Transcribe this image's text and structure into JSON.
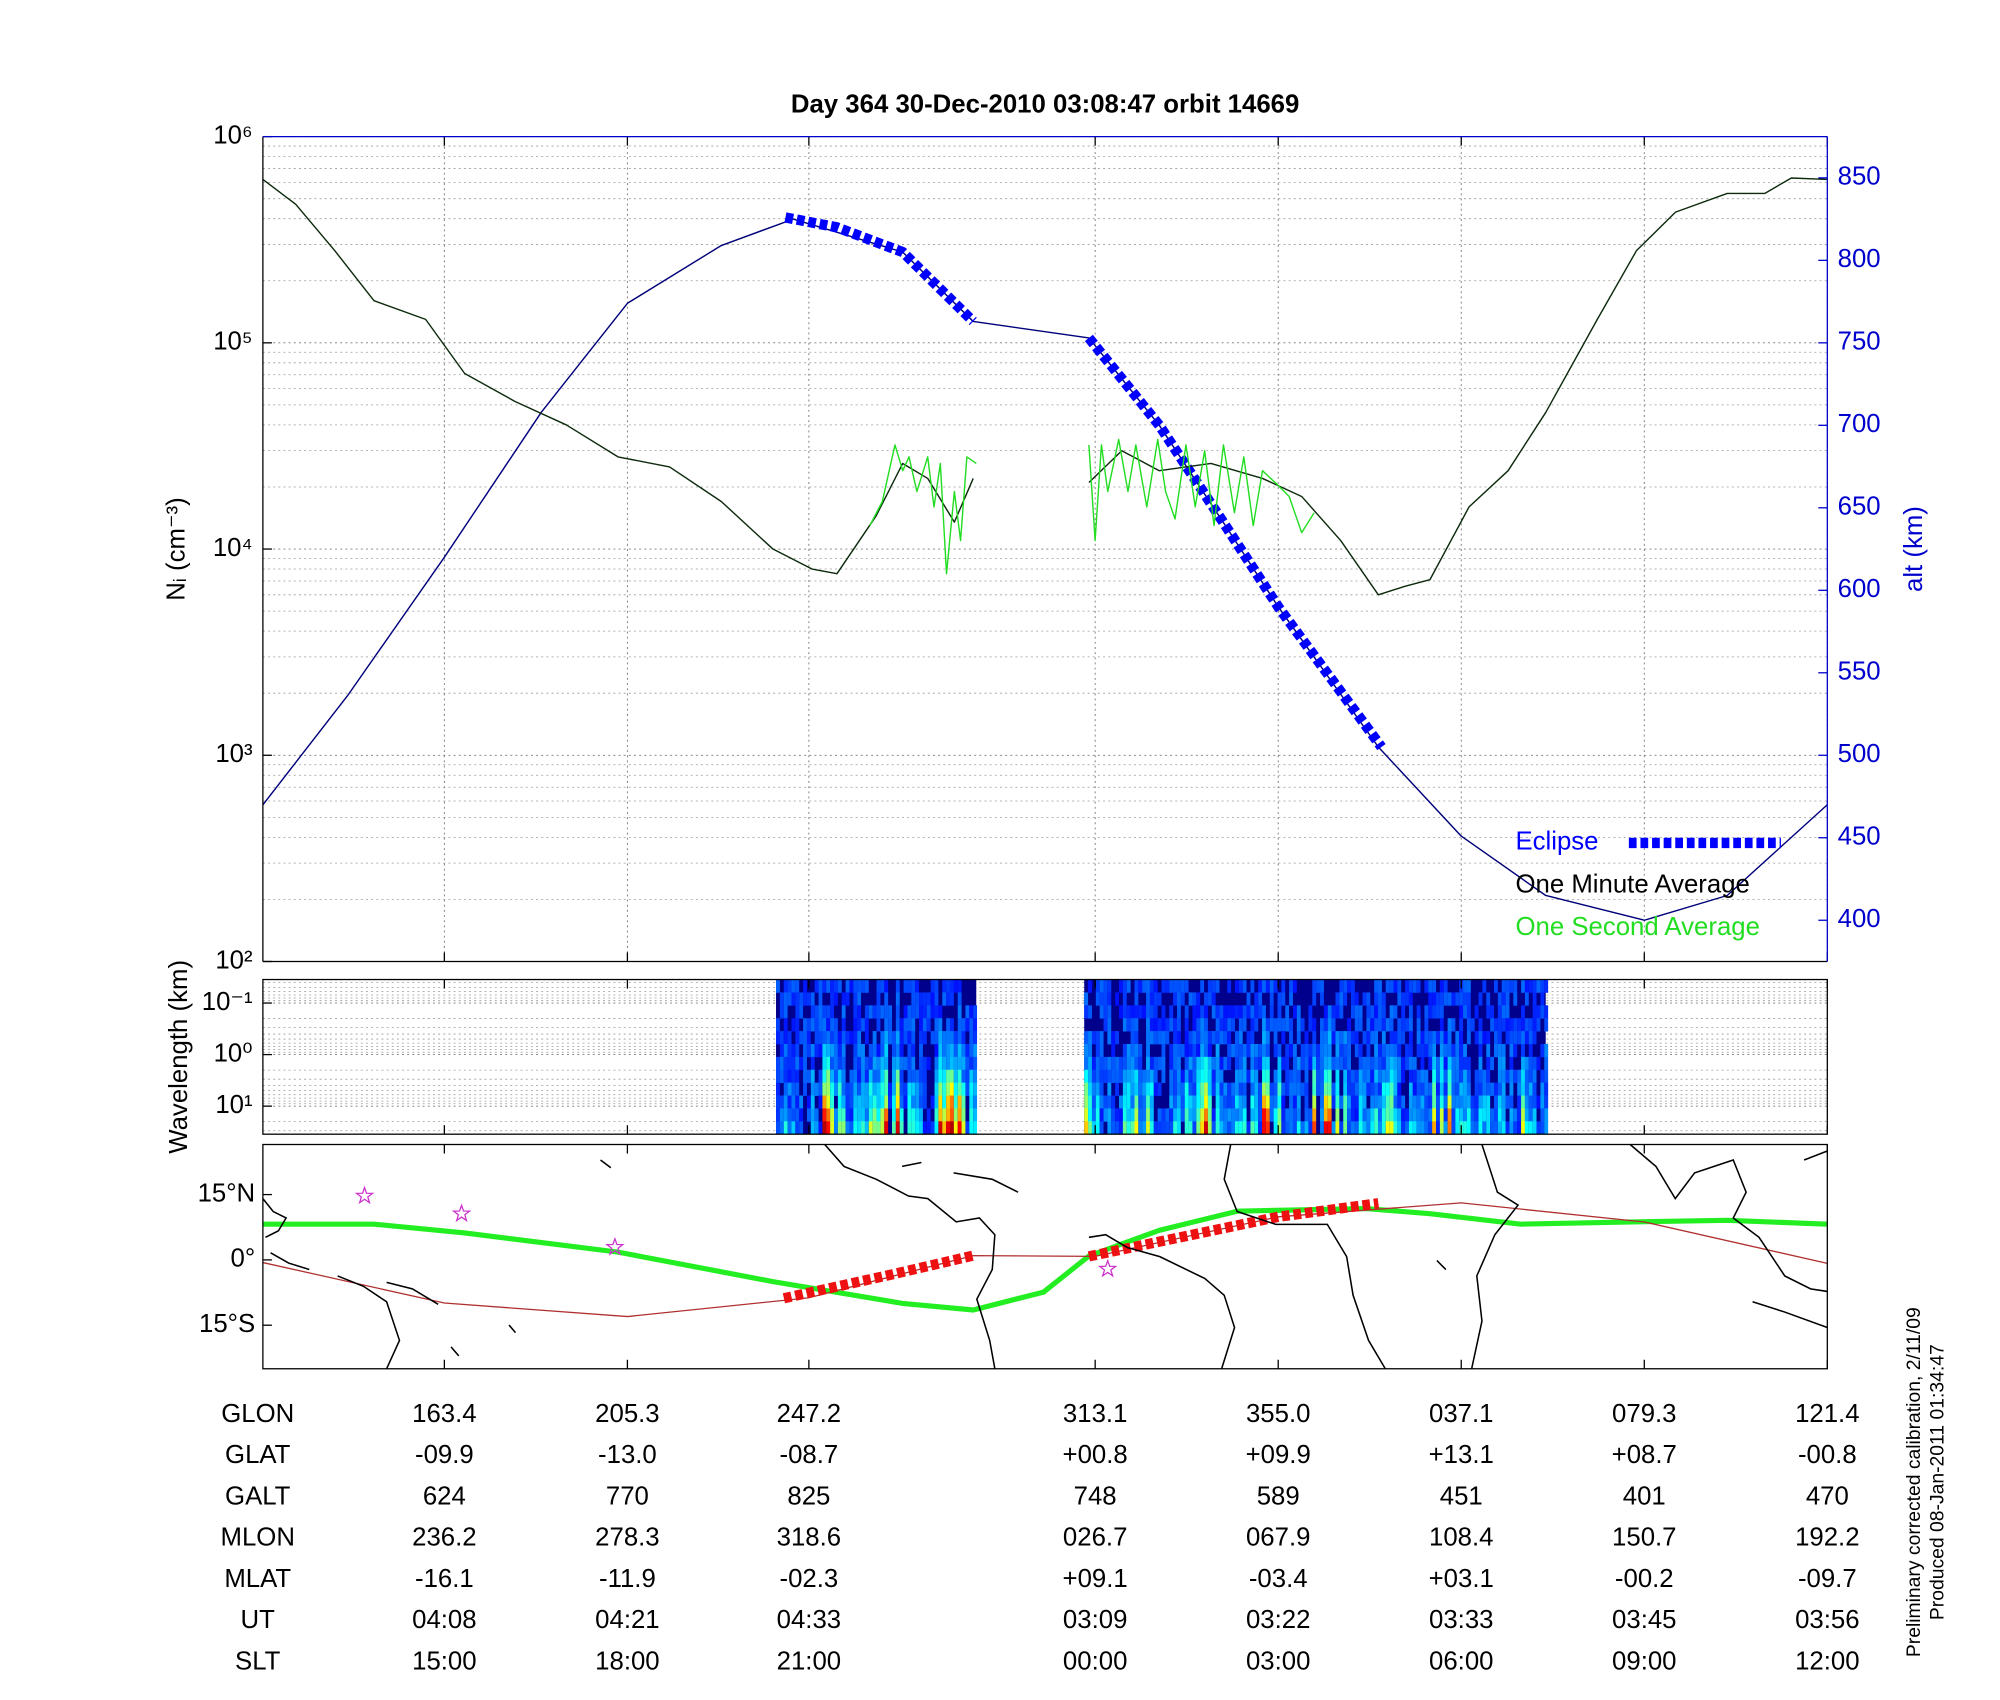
{
  "chart_data": [
    {
      "type": "line",
      "title": "Day 364  30-Dec-2010 03:08:47   orbit 14669",
      "ylabel": "Nᵢ (cm⁻³)",
      "y2label": "alt (km)",
      "xlim": [
        0,
        100
      ],
      "xticks": [
        11.6,
        23.3,
        34.9,
        53.2,
        64.9,
        76.6,
        88.3,
        100
      ],
      "ylim": [
        100,
        1000000
      ],
      "ylog": true,
      "yticks": [
        {
          "value": 100,
          "label": "10²"
        },
        {
          "value": 1000,
          "label": "10³"
        },
        {
          "value": 10000,
          "label": "10⁴"
        },
        {
          "value": 100000,
          "label": "10⁵"
        },
        {
          "value": 1000000,
          "label": "10⁶"
        }
      ],
      "y2lim": [
        375,
        875
      ],
      "y2ticks": [
        400,
        450,
        500,
        550,
        600,
        650,
        700,
        750,
        800,
        850
      ],
      "grid": true,
      "minor_grid": true,
      "legend": "lower right",
      "series": [
        {
          "axis": "y2",
          "color": "#00007a",
          "x": [
            0,
            5.4,
            11.6,
            17.8,
            23.3,
            29.3,
            33.9,
            40.9,
            45.4,
            52.8,
            57.3,
            61.4,
            64.9,
            71.3,
            76.6,
            82.0,
            88.3,
            93.6,
            100
          ],
          "values": [
            470,
            536,
            620,
            708,
            774,
            809,
            825,
            805,
            763,
            753,
            700,
            641,
            590,
            505,
            451,
            415,
            400,
            415,
            470
          ]
        },
        {
          "name": "Eclipse",
          "axis": "y2",
          "color": "#0000ff",
          "style": "dashed",
          "x": [
            33.4,
            36.7,
            40.9,
            45.4,
            49.0,
            52.8,
            57.3,
            61.4,
            64.9,
            71.5
          ],
          "values": [
            826,
            820,
            805,
            763,
            null,
            753,
            700,
            641,
            590,
            505
          ]
        },
        {
          "name": "One Minute Average",
          "color": "#0c2a0c",
          "x": [
            0,
            2.1,
            4.6,
            7.1,
            10.4,
            12.9,
            16.1,
            19.4,
            22.7,
            26.0,
            29.3,
            32.6,
            35.1,
            36.7,
            39.2,
            40.9,
            42.5,
            44.2,
            45.4,
            49.0,
            52.8,
            54.9,
            57.3,
            60.6,
            63.9,
            66.4,
            68.9,
            71.3,
            73.0,
            74.6,
            77.1,
            79.6,
            82.0,
            85.3,
            87.8,
            90.3,
            93.6,
            96.0,
            97.7,
            100
          ],
          "values": [
            620000,
            470000,
            280000,
            160000,
            130000,
            71000,
            52000,
            40000,
            28000,
            25000,
            17000,
            10000,
            8000,
            7600,
            14500,
            26000,
            22000,
            13500,
            22000,
            null,
            21000,
            30000,
            24000,
            26000,
            22000,
            18000,
            11000,
            6000,
            6600,
            7100,
            16000,
            24000,
            46000,
            130000,
            280000,
            430000,
            530000,
            530000,
            630000,
            620000
          ]
        },
        {
          "name": "One Second Average",
          "color": "#22dd22",
          "x": [
            38.8,
            39.6,
            40.4,
            40.9,
            41.3,
            41.8,
            42.5,
            42.9,
            43.3,
            43.7,
            44.2,
            44.6,
            45.0,
            45.6,
            49.0,
            52.8,
            53.2,
            53.6,
            54.0,
            54.7,
            55.3,
            55.8,
            56.5,
            57.2,
            57.7,
            58.3,
            59.0,
            59.6,
            60.2,
            60.8,
            61.4,
            62.1,
            62.7,
            63.3,
            63.9,
            64.7,
            65.6,
            66.4,
            67.2
          ],
          "values": [
            13000,
            17000,
            32000,
            24000,
            28000,
            19000,
            28000,
            16000,
            26000,
            7600,
            19000,
            11000,
            28000,
            26000,
            null,
            32000,
            11000,
            32000,
            19000,
            34000,
            19000,
            32000,
            16000,
            34000,
            19000,
            14000,
            32000,
            16000,
            30000,
            13000,
            32000,
            15000,
            28000,
            13000,
            24000,
            21000,
            18000,
            12000,
            15000
          ]
        }
      ]
    },
    {
      "type": "spectrogram",
      "ylabel": "Wavelength (km)",
      "xlim": [
        0,
        100
      ],
      "ylim": [
        0.035,
        35
      ],
      "ylog": true,
      "yinvert": true,
      "yticks": [
        {
          "value": 0.1,
          "label": "10⁻¹"
        },
        {
          "value": 1,
          "label": "10⁰"
        },
        {
          "value": 10,
          "label": "10¹"
        }
      ],
      "minor_grid": true,
      "segments": [
        [
          32.8,
          45.6
        ],
        [
          52.5,
          82.0
        ]
      ]
    },
    {
      "type": "map",
      "xlim": [
        0,
        100
      ],
      "ylim": [
        -25,
        26.5
      ],
      "yticks": [
        {
          "value": 15,
          "label": "15°N"
        },
        {
          "value": 0,
          "label": "0°"
        },
        {
          "value": -15,
          "label": "15°S"
        }
      ],
      "series": [
        {
          "color": "#22ee22",
          "x": [
            0,
            7.1,
            12.9,
            22.7,
            32.6,
            40.9,
            45.4,
            49.9,
            52.8,
            57.3,
            62.3,
            70.5,
            74.6,
            80.4,
            88.8,
            93.6,
            100
          ],
          "values": [
            8.2,
            8.2,
            6.2,
            1.8,
            -5.0,
            -10.0,
            -11.5,
            -7.4,
            0.9,
            6.8,
            11.2,
            11.8,
            10.6,
            8.2,
            8.8,
            9.1,
            8.2
          ]
        },
        {
          "color": "#b03030",
          "x": [
            0,
            11.6,
            23.3,
            34.9,
            45.4,
            53.2,
            64.9,
            76.6,
            88.3,
            100
          ],
          "values": [
            -0.6,
            -9.9,
            -13.0,
            -8.7,
            1.0,
            0.8,
            9.9,
            13.1,
            8.7,
            -0.8
          ]
        },
        {
          "color": "#ee1111",
          "style": "dashed",
          "x": [
            33.3,
            40.0,
            45.4,
            49.0,
            52.8,
            64.9,
            71.3
          ],
          "values": [
            -8.8,
            -3.5,
            1.0,
            null,
            0.8,
            9.9,
            13.0
          ]
        }
      ],
      "stars": {
        "color": "#cc33cc",
        "x": [
          6.5,
          12.7,
          22.5,
          54.0
        ],
        "values": [
          14.7,
          10.6,
          2.9,
          -2.1
        ]
      }
    }
  ],
  "ephemeris": {
    "rows": [
      {
        "name": "GLON",
        "values": [
          "163.4",
          "205.3",
          "247.2",
          "313.1",
          "355.0",
          "037.1",
          "079.3",
          "121.4"
        ]
      },
      {
        "name": "GLAT",
        "values": [
          "-09.9",
          "-13.0",
          "-08.7",
          "+00.8",
          "+09.9",
          "+13.1",
          "+08.7",
          "-00.8"
        ]
      },
      {
        "name": "GALT",
        "values": [
          "624",
          "770",
          "825",
          "748",
          "589",
          "451",
          "401",
          "470"
        ]
      },
      {
        "name": "MLON",
        "values": [
          "236.2",
          "278.3",
          "318.6",
          "026.7",
          "067.9",
          "108.4",
          "150.7",
          "192.2"
        ]
      },
      {
        "name": "MLAT",
        "values": [
          "-16.1",
          "-11.9",
          "-02.3",
          "+09.1",
          "-03.4",
          "+03.1",
          "-00.2",
          "-09.7"
        ]
      },
      {
        "name": "UT",
        "values": [
          "04:08",
          "04:21",
          "04:33",
          "03:09",
          "03:22",
          "03:33",
          "03:45",
          "03:56"
        ]
      },
      {
        "name": "SLT",
        "values": [
          "15:00",
          "18:00",
          "21:00",
          "00:00",
          "03:00",
          "06:00",
          "09:00",
          "12:00"
        ]
      }
    ]
  },
  "notes": [
    "Preliminary corrected calibration, 2/11/09",
    "Produced 08-Jan-2011 01:34:47"
  ]
}
